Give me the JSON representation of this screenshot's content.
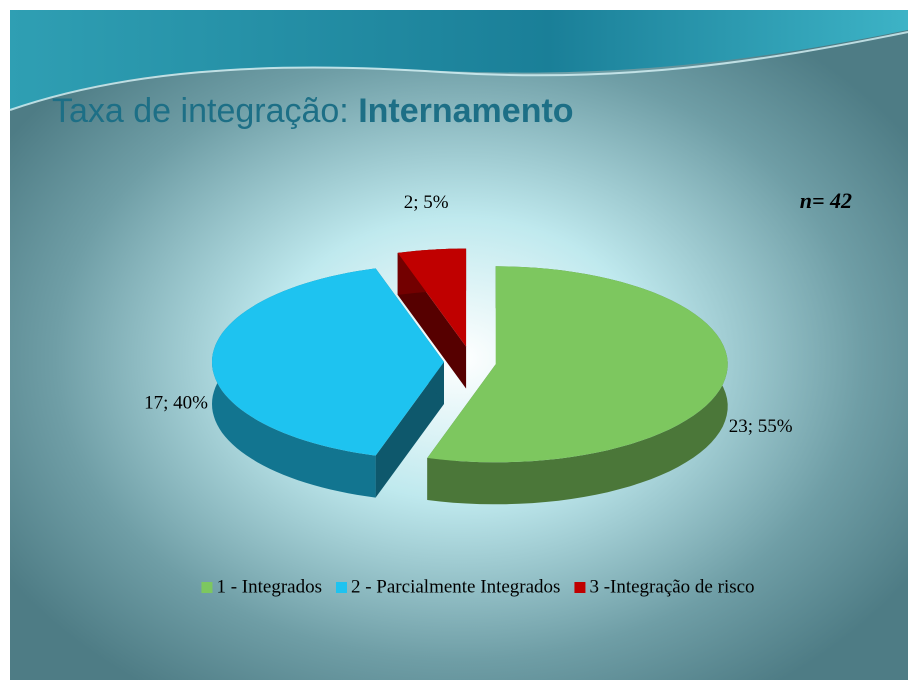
{
  "chart_data": {
    "type": "pie",
    "title": "Taxa de integração: ",
    "title_bold": "Internamento",
    "annotation": "n= 42",
    "categories": [
      "1 - Integrados",
      "2 - Parcialmente Integrados",
      "3 -Integração de risco"
    ],
    "values": [
      23,
      17,
      2
    ],
    "value_labels": [
      "23; 55%",
      "17; 40%",
      "2; 5%"
    ],
    "colors": [
      "#7dc75f",
      "#1ec3f0",
      "#c00000"
    ],
    "legend": "bottom"
  }
}
